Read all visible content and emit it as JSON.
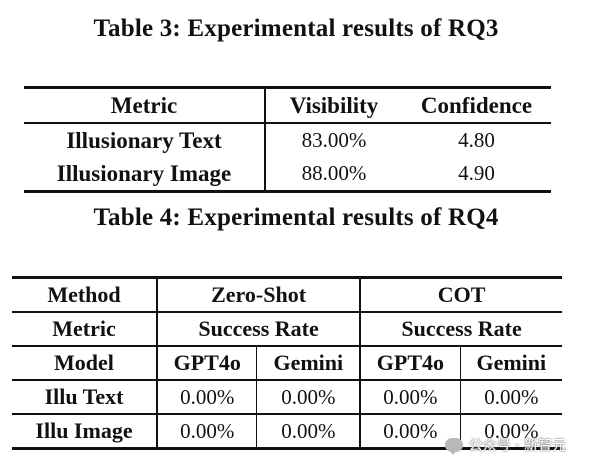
{
  "table3": {
    "caption": "Table 3: Experimental results of RQ3",
    "headers": [
      "Metric",
      "Visibility",
      "Confidence"
    ],
    "rows": [
      {
        "metric": "Illusionary Text",
        "visibility": "83.00%",
        "confidence": "4.80"
      },
      {
        "metric": "Illusionary Image",
        "visibility": "88.00%",
        "confidence": "4.90"
      }
    ]
  },
  "table4": {
    "caption": "Table 4: Experimental results of RQ4",
    "method_label": "Method",
    "metric_label": "Metric",
    "model_label": "Model",
    "groups": [
      {
        "method": "Zero-Shot",
        "metric": "Success Rate",
        "models": [
          "GPT4o",
          "Gemini"
        ]
      },
      {
        "method": "COT",
        "metric": "Success Rate",
        "models": [
          "GPT4o",
          "Gemini"
        ]
      }
    ],
    "rows": [
      {
        "label": "Illu Text",
        "values": [
          "0.00%",
          "0.00%",
          "0.00%",
          "0.00%"
        ]
      },
      {
        "label": "Illu Image",
        "values": [
          "0.00%",
          "0.00%",
          "0.00%",
          "0.00%"
        ]
      }
    ]
  },
  "watermark": {
    "text": "公众号 · 新智元",
    "icon": "wechat-bubble-icon"
  }
}
